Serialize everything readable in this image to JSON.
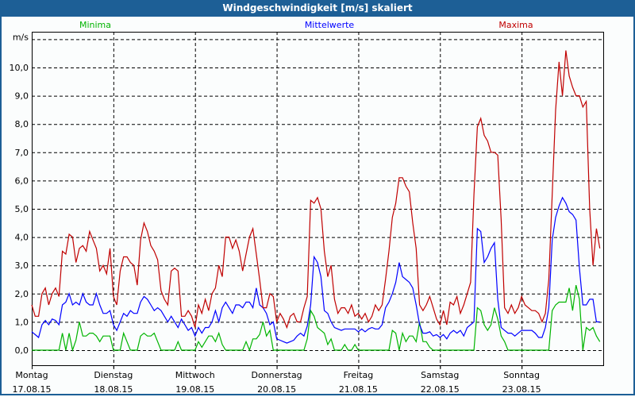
{
  "window": {
    "title": "Windgeschwindigkeit [m/s] skaliert"
  },
  "chart_data": {
    "type": "line",
    "title": "Windgeschwindigkeit [m/s] skaliert",
    "ylabel": "m/s",
    "ylim": [
      -0.53,
      11
    ],
    "yticks": [
      0,
      1,
      2,
      3,
      4,
      5,
      6,
      7,
      8,
      9,
      10
    ],
    "ytick_labels": [
      "0,0",
      "1,0",
      "2,0",
      "3,0",
      "4,0",
      "5,0",
      "6,0",
      "7,0",
      "8,0",
      "9,0",
      "10,0"
    ],
    "xlim_hours": [
      0,
      168
    ],
    "x_step_hours": 1,
    "days": [
      {
        "name": "Montag",
        "date": "17.08.15"
      },
      {
        "name": "Dienstag",
        "date": "18.08.15"
      },
      {
        "name": "Mittwoch",
        "date": "19.08.15"
      },
      {
        "name": "Donnerstag",
        "date": "20.08.15"
      },
      {
        "name": "Freitag",
        "date": "21.08.15"
      },
      {
        "name": "Samstag",
        "date": "22.08.15"
      },
      {
        "name": "Sonntag",
        "date": "23.08.15"
      }
    ],
    "grid": true,
    "legend_position": "top",
    "series": [
      {
        "name": "Minima",
        "color": "#00b400",
        "values": [
          0,
          0,
          0,
          0,
          0,
          0,
          0,
          0,
          0,
          0.6,
          0,
          0.6,
          0,
          0.35,
          1.0,
          0.5,
          0.5,
          0.6,
          0.6,
          0.5,
          0.3,
          0.5,
          0.5,
          0.5,
          0,
          0,
          0,
          0.6,
          0.3,
          0,
          0,
          0,
          0.5,
          0.6,
          0.5,
          0.5,
          0.6,
          0.3,
          0,
          0,
          0,
          0,
          0,
          0.3,
          0,
          0,
          0,
          0,
          0,
          0.3,
          0.1,
          0.3,
          0.5,
          0.5,
          0.3,
          0.6,
          0.2,
          0,
          0,
          0,
          0,
          0,
          0,
          0.3,
          0,
          0.4,
          0.4,
          0.55,
          1.0,
          0.5,
          0.7,
          0,
          0,
          0,
          0,
          0,
          0,
          0,
          0,
          0,
          0,
          0.4,
          1.4,
          1.2,
          0.8,
          0.7,
          0.6,
          0.2,
          0.4,
          0,
          0,
          0,
          0.2,
          0,
          0,
          0.2,
          0,
          0,
          0,
          0,
          0,
          0,
          0,
          0,
          0,
          0,
          0.7,
          0.6,
          0,
          0.6,
          0.3,
          0.5,
          0.5,
          0.3,
          1.0,
          0.3,
          0.3,
          0.1,
          0,
          0,
          0,
          0,
          0,
          0,
          0,
          0,
          0,
          0,
          0,
          0,
          0,
          1.5,
          1.4,
          0.9,
          0.7,
          0.9,
          1.5,
          1.1,
          0.5,
          0.3,
          0,
          0,
          0,
          0,
          0,
          0,
          0,
          0,
          0,
          0,
          0,
          0,
          0,
          1.4,
          1.6,
          1.7,
          1.7,
          1.7,
          2.2,
          1.4,
          2.3,
          1.8,
          0,
          0.8,
          0.7,
          0.8,
          0.5,
          0.3
        ]
      },
      {
        "name": "Mittelwerte",
        "color": "#0000ff",
        "values": [
          0.65,
          0.55,
          0.45,
          0.9,
          1.05,
          0.9,
          1.1,
          1.05,
          0.9,
          1.6,
          1.7,
          2.0,
          1.6,
          1.7,
          1.6,
          2.0,
          1.7,
          1.6,
          1.6,
          2.0,
          1.6,
          1.3,
          1.3,
          1.4,
          0.9,
          0.7,
          1.0,
          1.3,
          1.2,
          1.4,
          1.3,
          1.3,
          1.7,
          1.9,
          1.8,
          1.6,
          1.4,
          1.5,
          1.4,
          1.2,
          1.0,
          1.2,
          1.0,
          0.8,
          1.1,
          0.9,
          0.7,
          0.8,
          0.5,
          0.8,
          0.6,
          0.8,
          0.8,
          1.0,
          1.4,
          1.0,
          1.5,
          1.7,
          1.5,
          1.3,
          1.6,
          1.6,
          1.5,
          1.7,
          1.7,
          1.5,
          2.2,
          1.6,
          1.5,
          1.3,
          0.9,
          1.0,
          0.4,
          0.35,
          0.3,
          0.25,
          0.3,
          0.35,
          0.5,
          0.6,
          0.5,
          0.85,
          1.6,
          3.3,
          3.1,
          2.6,
          1.4,
          1.3,
          1.0,
          0.8,
          0.75,
          0.7,
          0.75,
          0.75,
          0.75,
          0.75,
          0.65,
          0.75,
          0.65,
          0.75,
          0.8,
          0.75,
          0.75,
          0.9,
          1.5,
          1.7,
          2.0,
          2.4,
          3.1,
          2.6,
          2.5,
          2.4,
          2.2,
          1.6,
          0.9,
          0.6,
          0.6,
          0.65,
          0.5,
          0.55,
          0.45,
          0.55,
          0.4,
          0.6,
          0.7,
          0.6,
          0.7,
          0.5,
          0.8,
          0.9,
          1.0,
          4.3,
          4.2,
          3.1,
          3.3,
          3.6,
          3.8,
          1.8,
          0.8,
          0.7,
          0.6,
          0.6,
          0.5,
          0.6,
          0.7,
          0.7,
          0.7,
          0.7,
          0.6,
          0.45,
          0.45,
          0.8,
          1.5,
          3.9,
          4.7,
          5.1,
          5.4,
          5.2,
          4.9,
          4.8,
          4.6,
          2.9,
          1.6,
          1.6,
          1.8,
          1.8,
          1.0,
          1.0
        ]
      },
      {
        "name": "Maxima",
        "color": "#c00000",
        "values": [
          1.6,
          1.2,
          1.2,
          2.0,
          2.2,
          1.6,
          2.0,
          2.2,
          1.9,
          3.5,
          3.4,
          4.1,
          4.0,
          3.1,
          3.6,
          3.7,
          3.5,
          4.2,
          3.9,
          3.6,
          2.8,
          3.0,
          2.7,
          3.6,
          1.9,
          1.6,
          2.8,
          3.3,
          3.3,
          3.1,
          3.0,
          2.3,
          3.9,
          4.5,
          4.2,
          3.7,
          3.5,
          3.2,
          2.1,
          1.8,
          1.6,
          2.8,
          2.9,
          2.8,
          1.2,
          1.2,
          1.4,
          1.2,
          0.8,
          1.6,
          1.3,
          1.8,
          1.4,
          2.0,
          2.2,
          3.0,
          2.6,
          4.0,
          4.0,
          3.6,
          3.9,
          3.5,
          2.8,
          3.4,
          4.0,
          4.3,
          3.4,
          2.5,
          1.5,
          1.5,
          2.0,
          1.9,
          1.0,
          1.3,
          1.1,
          0.8,
          1.2,
          1.3,
          1.0,
          1.0,
          1.5,
          1.9,
          5.3,
          5.2,
          5.4,
          5.0,
          3.5,
          2.6,
          3.0,
          1.8,
          1.3,
          1.5,
          1.5,
          1.3,
          1.6,
          1.2,
          1.3,
          1.1,
          1.3,
          1.0,
          1.2,
          1.6,
          1.4,
          1.6,
          2.5,
          3.5,
          4.7,
          5.2,
          6.1,
          6.1,
          5.8,
          5.6,
          4.5,
          3.6,
          1.6,
          1.4,
          1.6,
          1.9,
          1.5,
          1.1,
          0.9,
          1.4,
          0.9,
          1.7,
          1.6,
          1.9,
          1.3,
          1.6,
          2.0,
          2.4,
          5.5,
          7.9,
          8.2,
          7.6,
          7.4,
          7.0,
          7.0,
          6.9,
          4.6,
          1.5,
          1.3,
          1.6,
          1.3,
          1.5,
          1.9,
          1.6,
          1.5,
          1.4,
          1.4,
          1.3,
          1.0,
          1.3,
          2.5,
          5.5,
          8.5,
          10.2,
          9.0,
          10.6,
          9.7,
          9.3,
          9.0,
          9.0,
          8.6,
          8.8,
          5.0,
          3.0,
          4.3,
          3.6
        ]
      }
    ]
  }
}
